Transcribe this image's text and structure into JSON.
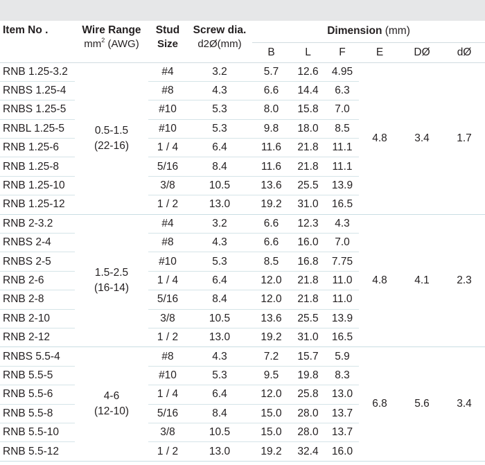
{
  "header": {
    "item": "Item No .",
    "wire_range": "Wire Range",
    "wire_range_unit_pre": "mm",
    "wire_range_unit_sup": "2",
    "wire_range_unit_post": " (AWG)",
    "stud": "Stud",
    "stud2": "Size",
    "screw": "Screw dia.",
    "screw2": "d2Ø(mm)",
    "dimension": "Dimension",
    "dimension_unit": " (mm)",
    "sub": [
      "B",
      "L",
      "F",
      "E",
      "DØ",
      "dØ"
    ]
  },
  "groups": [
    {
      "wire_range": "0.5-1.5",
      "awg": "(22-16)",
      "E": "4.8",
      "D": "3.4",
      "d": "1.7",
      "rows": [
        {
          "item": "RNB 1.25-3.2",
          "stud": "#4",
          "screw": "3.2",
          "B": "5.7",
          "L": "12.6",
          "F": "4.95"
        },
        {
          "item": "RNBS 1.25-4",
          "stud": "#8",
          "screw": "4.3",
          "B": "6.6",
          "L": "14.4",
          "F": "6.3"
        },
        {
          "item": "RNBS 1.25-5",
          "stud": "#10",
          "screw": "5.3",
          "B": "8.0",
          "L": "15.8",
          "F": "7.0"
        },
        {
          "item": "RNBL 1.25-5",
          "stud": "#10",
          "screw": "5.3",
          "B": "9.8",
          "L": "18.0",
          "F": "8.5"
        },
        {
          "item": "RNB 1.25-6",
          "stud": "1 / 4",
          "screw": "6.4",
          "B": "11.6",
          "L": "21.8",
          "F": "11.1"
        },
        {
          "item": "RNB 1.25-8",
          "stud": "5/16",
          "screw": "8.4",
          "B": "11.6",
          "L": "21.8",
          "F": "11.1"
        },
        {
          "item": "RNB 1.25-10",
          "stud": "3/8",
          "screw": "10.5",
          "B": "13.6",
          "L": "25.5",
          "F": "13.9"
        },
        {
          "item": "RNB 1.25-12",
          "stud": "1 / 2",
          "screw": "13.0",
          "B": "19.2",
          "L": "31.0",
          "F": "16.5"
        }
      ]
    },
    {
      "wire_range": "1.5-2.5",
      "awg": "(16-14)",
      "E": "4.8",
      "D": "4.1",
      "d": "2.3",
      "rows": [
        {
          "item": "RNB 2-3.2",
          "stud": "#4",
          "screw": "3.2",
          "B": "6.6",
          "L": "12.3",
          "F": "4.3"
        },
        {
          "item": "RNBS 2-4",
          "stud": "#8",
          "screw": "4.3",
          "B": "6.6",
          "L": "16.0",
          "F": "7.0"
        },
        {
          "item": "RNBS 2-5",
          "stud": "#10",
          "screw": "5.3",
          "B": "8.5",
          "L": "16.8",
          "F": "7.75"
        },
        {
          "item": "RNB 2-6",
          "stud": "1 / 4",
          "screw": "6.4",
          "B": "12.0",
          "L": "21.8",
          "F": "11.0"
        },
        {
          "item": "RNB 2-8",
          "stud": "5/16",
          "screw": "8.4",
          "B": "12.0",
          "L": "21.8",
          "F": "11.0"
        },
        {
          "item": "RNB 2-10",
          "stud": "3/8",
          "screw": "10.5",
          "B": "13.6",
          "L": "25.5",
          "F": "13.9"
        },
        {
          "item": "RNB 2-12",
          "stud": "1 / 2",
          "screw": "13.0",
          "B": "19.2",
          "L": "31.0",
          "F": "16.5"
        }
      ]
    },
    {
      "wire_range": "4-6",
      "awg": "(12-10)",
      "E": "6.8",
      "D": "5.6",
      "d": "3.4",
      "rows": [
        {
          "item": "RNBS 5.5-4",
          "stud": "#8",
          "screw": "4.3",
          "B": "7.2",
          "L": "15.7",
          "F": "5.9"
        },
        {
          "item": "RNB 5.5-5",
          "stud": "#10",
          "screw": "5.3",
          "B": "9.5",
          "L": "19.8",
          "F": "8.3"
        },
        {
          "item": "RNB 5.5-6",
          "stud": "1 / 4",
          "screw": "6.4",
          "B": "12.0",
          "L": "25.8",
          "F": "13.0"
        },
        {
          "item": "RNB 5.5-8",
          "stud": "5/16",
          "screw": "8.4",
          "B": "15.0",
          "L": "28.0",
          "F": "13.7"
        },
        {
          "item": "RNB 5.5-10",
          "stud": "3/8",
          "screw": "10.5",
          "B": "15.0",
          "L": "28.0",
          "F": "13.7"
        },
        {
          "item": "RNB 5.5-12",
          "stud": "1 / 2",
          "screw": "13.0",
          "B": "19.2",
          "L": "32.4",
          "F": "16.0"
        }
      ]
    }
  ]
}
